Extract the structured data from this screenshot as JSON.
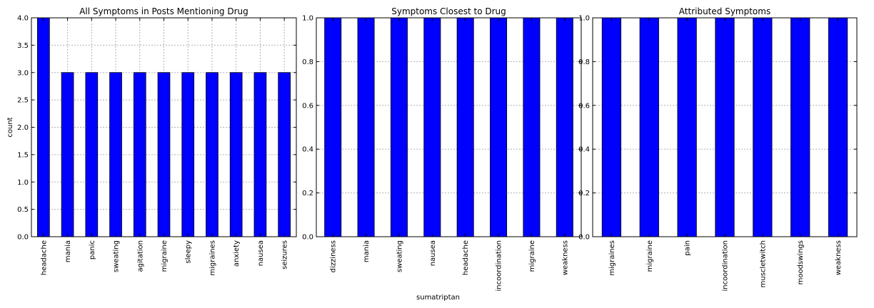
{
  "figure": {
    "shared_xlabel": "sumatriptan",
    "colors": {
      "bar": "#0000ff",
      "bar_edge": "#000000",
      "grid": "#b0b0b0",
      "axes": "#000000"
    }
  },
  "chart_data": [
    {
      "type": "bar",
      "title": "All Symptoms in Posts Mentioning Drug",
      "xlabel": "",
      "ylabel": "count",
      "grid": true,
      "ylim": [
        0,
        4
      ],
      "yticks": [
        "0.0",
        "0.5",
        "1.0",
        "1.5",
        "2.0",
        "2.5",
        "3.0",
        "3.5",
        "4.0"
      ],
      "yticks_values": [
        0,
        0.5,
        1,
        1.5,
        2,
        2.5,
        3,
        3.5,
        4
      ],
      "categories": [
        "headache",
        "mania",
        "panic",
        "sweating",
        "agitation",
        "migraine",
        "sleepy",
        "migraines",
        "anxiety",
        "nausea",
        "seizures"
      ],
      "values": [
        4,
        3,
        3,
        3,
        3,
        3,
        3,
        3,
        3,
        3,
        3
      ]
    },
    {
      "type": "bar",
      "title": "Symptoms Closest to Drug",
      "xlabel": "sumatriptan",
      "ylabel": "",
      "grid": true,
      "ylim": [
        0,
        1
      ],
      "yticks": [
        "0.0",
        "0.2",
        "0.4",
        "0.6",
        "0.8",
        "1.0"
      ],
      "yticks_values": [
        0,
        0.2,
        0.4,
        0.6,
        0.8,
        1
      ],
      "categories": [
        "dizziness",
        "mania",
        "sweating",
        "nausea",
        "headache",
        "incoordination",
        "migraine",
        "weakness"
      ],
      "values": [
        1,
        1,
        1,
        1,
        1,
        1,
        1,
        1
      ]
    },
    {
      "type": "bar",
      "title": "Attributed Symptoms",
      "xlabel": "",
      "ylabel": "",
      "grid": true,
      "ylim": [
        0,
        1
      ],
      "yticks": [
        "0.0",
        "0.2",
        "0.4",
        "0.6",
        "0.8",
        "1.0"
      ],
      "yticks_values": [
        0,
        0.2,
        0.4,
        0.6,
        0.8,
        1
      ],
      "categories": [
        "migraines",
        "migraine",
        "pain",
        "incoordination",
        "muscletwitch",
        "moodswings",
        "weakness"
      ],
      "values": [
        1,
        1,
        1,
        1,
        1,
        1,
        1
      ]
    }
  ]
}
